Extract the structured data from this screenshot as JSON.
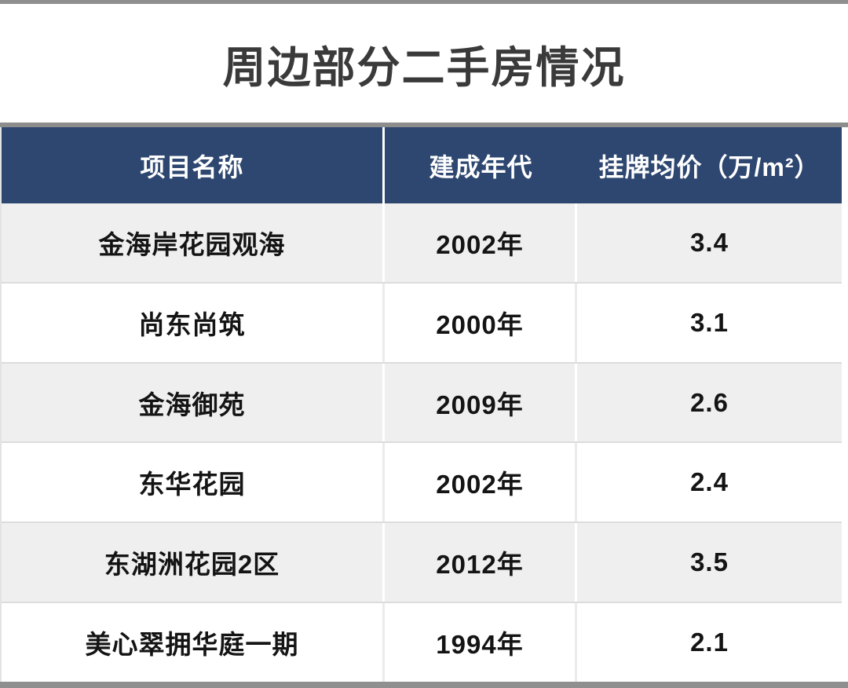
{
  "title": "周边部分二手房情况",
  "chart_data": {
    "type": "table",
    "title": "周边部分二手房情况",
    "columns": [
      "项目名称",
      "建成年代",
      "挂牌均价（万/m²）"
    ],
    "rows": [
      [
        "金海岸花园观海",
        "2002年",
        "3.4"
      ],
      [
        "尚东尚筑",
        "2000年",
        "3.1"
      ],
      [
        "金海御苑",
        "2009年",
        "2.6"
      ],
      [
        "东华花园",
        "2002年",
        "2.4"
      ],
      [
        "东湖洲花园2区",
        "2012年",
        "3.5"
      ],
      [
        "美心翠拥华庭一期",
        "1994年",
        "2.1"
      ]
    ],
    "units": {
      "price": "万/m²"
    }
  },
  "colors": {
    "header_bg": "#2e4770",
    "header_text": "#ffffff",
    "row_alt_bg": "#efefef",
    "row_bg": "#ffffff",
    "frame_gray": "#8f8f8f",
    "title_text": "#3a3a3a",
    "cell_text": "#141414"
  }
}
